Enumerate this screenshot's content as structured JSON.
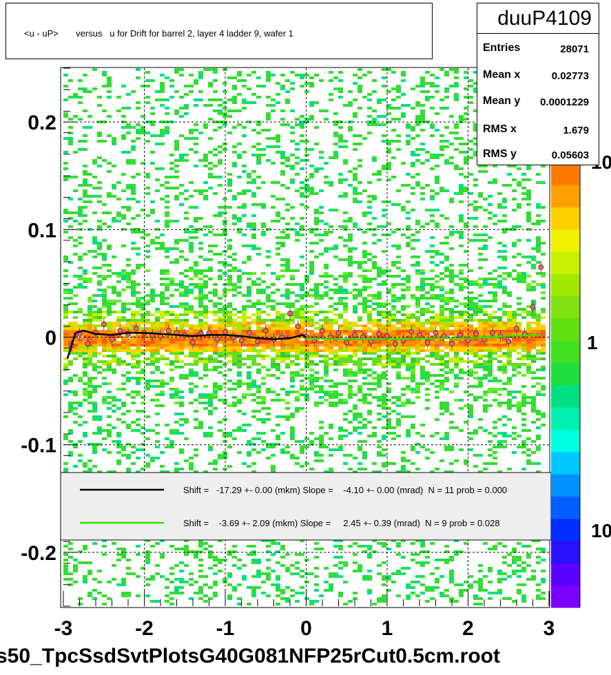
{
  "title": "<u - uP>       versus   u for Drift for barrel 2, layer 4 ladder 9, wafer 1",
  "stats": {
    "name": "duuP4109",
    "rows": [
      {
        "key": "Entries",
        "value": "28071"
      },
      {
        "key": "Mean x",
        "value": "0.02773"
      },
      {
        "key": "Mean y",
        "value": "0.0001229"
      },
      {
        "key": "RMS x",
        "value": "1.679"
      },
      {
        "key": "RMS y",
        "value": "0.05603"
      }
    ]
  },
  "filename": "s50_TpcSsdSvtPlotsG40G081NFP25rCut0.5cm.root",
  "legend": {
    "entries": [
      {
        "text": "Shift =   -17.29 +- 0.00 (mkm) Slope =    -4.10 +- 0.00 (mrad)  N = 11 prob = 0.000",
        "color": "#000000"
      },
      {
        "text": "Shift =    -3.69 +- 2.09 (mkm) Slope =     2.45 +- 0.39 (mrad)  N = 9 prob = 0.028",
        "color": "#33dd00"
      }
    ]
  },
  "colorbar": {
    "labels": [
      "10",
      "1",
      "10"
    ],
    "colors": [
      "#7a00ff",
      "#5a00ff",
      "#2a10ff",
      "#0030ff",
      "#0060ff",
      "#0090ff",
      "#00c8ff",
      "#00ffe0",
      "#00f0b0",
      "#00e080",
      "#20e040",
      "#40e020",
      "#60e010",
      "#80e010",
      "#a0e800",
      "#c8f000",
      "#f0f000",
      "#ffd000",
      "#ffa000",
      "#ff7a00"
    ]
  },
  "chart_data": {
    "type": "heatmap",
    "title": "<u - uP>       versus   u for Drift for barrel 2, layer 4 ladder 9, wafer 1",
    "xlim": [
      -3,
      3
    ],
    "ylim": [
      -0.25,
      0.25
    ],
    "x_ticks": [
      "-3",
      "-2",
      "-1",
      "0",
      "1",
      "2",
      "3"
    ],
    "y_ticks": [
      "-0.2",
      "-0.1",
      "0",
      "0.1",
      "0.2"
    ],
    "grid": true,
    "legend_placement": "bottom",
    "series": [
      {
        "name": "profile",
        "x": [
          -2.9,
          -2.8,
          -2.7,
          -2.6,
          -2.5,
          -2.4,
          -2.3,
          -2.2,
          -2.1,
          -2.0,
          -1.9,
          -1.8,
          -1.7,
          -1.6,
          -1.5,
          -1.4,
          -1.3,
          -1.2,
          -1.1,
          -1.0,
          -0.9,
          -0.8,
          -0.7,
          -0.6,
          -0.5,
          -0.4,
          -0.3,
          -0.2,
          -0.1,
          0.0,
          0.1,
          0.2,
          0.3,
          0.4,
          0.5,
          0.6,
          0.7,
          0.8,
          0.9,
          1.0,
          1.1,
          1.2,
          1.3,
          1.4,
          1.5,
          1.6,
          1.7,
          1.8,
          1.9,
          2.0,
          2.1,
          2.2,
          2.3,
          2.4,
          2.5,
          2.6,
          2.7,
          2.8,
          2.9
        ],
        "y": [
          -0.008,
          0.003,
          -0.006,
          0.004,
          0.012,
          -0.002,
          0.006,
          0.003,
          0.008,
          0.004,
          0.002,
          0.001,
          0.006,
          0.004,
          0.002,
          -0.005,
          0.003,
          0.004,
          -0.002,
          0.005,
          0.0,
          -0.003,
          0.004,
          -0.004,
          0.006,
          -0.002,
          0.0,
          0.022,
          0.01,
          0.001,
          -0.003,
          0.006,
          0.0,
          0.004,
          -0.005,
          0.002,
          0.0,
          -0.004,
          0.003,
          0.001,
          -0.006,
          -0.003,
          0.005,
          0.002,
          -0.005,
          0.004,
          0.001,
          -0.006,
          0.002,
          -0.003,
          0.003,
          -0.002,
          0.004,
          0.001,
          -0.004,
          0.008,
          0.003,
          0.028,
          0.065
        ]
      },
      {
        "name": "fit1",
        "x": [
          -2.95,
          -2.85,
          -2.75,
          -2.6,
          -2.4,
          -2.2,
          -2.0,
          -1.8,
          -1.6,
          -1.4,
          -1.2,
          -1.0,
          -0.8,
          -0.6,
          -0.4,
          -0.2,
          -0.05,
          0.0
        ],
        "y": [
          -0.02,
          0.004,
          0.006,
          0.003,
          0.002,
          0.004,
          0.004,
          0.003,
          0.002,
          0.001,
          0.002,
          0.002,
          0.001,
          -0.001,
          -0.002,
          -0.001,
          0.002,
          0.0
        ]
      },
      {
        "name": "fit2",
        "x": [
          0.0,
          0.5,
          1.0,
          1.5,
          2.0,
          2.5,
          2.9
        ],
        "y": [
          -0.001,
          -0.002,
          -0.002,
          -0.001,
          -0.001,
          0.001,
          0.002
        ]
      }
    ]
  }
}
